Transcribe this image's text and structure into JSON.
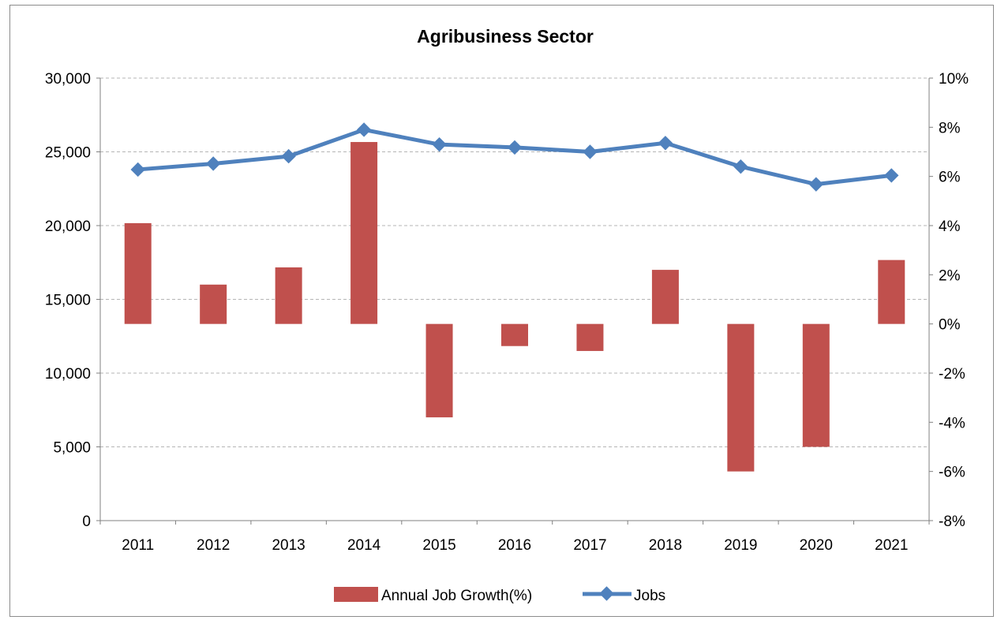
{
  "chart_data": {
    "type": "bar",
    "title": "Agribusiness Sector",
    "categories": [
      "2011",
      "2012",
      "2013",
      "2014",
      "2015",
      "2016",
      "2017",
      "2018",
      "2019",
      "2020",
      "2021"
    ],
    "series": [
      {
        "name": "Annual Job Growth(%)",
        "type": "bar",
        "axis": "right",
        "color": "#c0504d",
        "values": [
          4.1,
          1.6,
          2.3,
          7.4,
          -3.8,
          -0.9,
          -1.1,
          2.2,
          -6.0,
          -5.0,
          2.6
        ]
      },
      {
        "name": "Jobs",
        "type": "line",
        "axis": "left",
        "color": "#4f81bd",
        "marker": "diamond",
        "values": [
          23800,
          24200,
          24700,
          26500,
          25500,
          25300,
          25000,
          25600,
          24000,
          22800,
          23400
        ]
      }
    ],
    "y_left": {
      "min": 0,
      "max": 30000,
      "ticks": [
        0,
        5000,
        10000,
        15000,
        20000,
        25000,
        30000
      ],
      "tick_labels": [
        "0",
        "5,000",
        "10,000",
        "15,000",
        "20,000",
        "25,000",
        "30,000"
      ]
    },
    "y_right": {
      "min": -8,
      "max": 10,
      "ticks": [
        -8,
        -6,
        -4,
        -2,
        0,
        2,
        4,
        6,
        8,
        10
      ],
      "tick_labels": [
        "-8%",
        "-6%",
        "-4%",
        "-2%",
        "0%",
        "2%",
        "4%",
        "6%",
        "8%",
        "10%"
      ]
    },
    "grid": true,
    "legend": "bottom"
  }
}
